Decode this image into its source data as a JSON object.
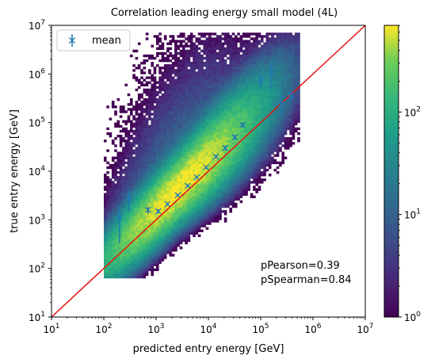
{
  "chart_data": {
    "type": "heatmap",
    "title": "Correlation leading energy small model (4L)",
    "xlabel": "predicted entry energy [GeV]",
    "ylabel": "true entry energy [GeV]",
    "x_scale": "log",
    "y_scale": "log",
    "xlim": [
      10,
      10000000
    ],
    "ylim": [
      10,
      10000000
    ],
    "x_ticks": [
      "10^1",
      "10^2",
      "10^3",
      "10^4",
      "10^5",
      "10^6",
      "10^7"
    ],
    "y_ticks": [
      "10^1",
      "10^2",
      "10^3",
      "10^4",
      "10^5",
      "10^6",
      "10^7"
    ],
    "grid": false,
    "colormap": "viridis",
    "colorbar": {
      "scale": "log",
      "range": [
        1,
        700
      ],
      "tick_labels": [
        "10^0",
        "10^1",
        "10^2"
      ]
    },
    "identity_line": {
      "color": "#e8120c",
      "from": [
        10,
        10
      ],
      "to": [
        10000000,
        10000000
      ]
    },
    "series": [
      {
        "name": "mean",
        "marker": "x",
        "color": "#1f77b4",
        "points": [
          {
            "x": 200,
            "y": 1100,
            "ylo": 330,
            "yhi": 1900
          },
          {
            "x": 300,
            "y": 2800,
            "ylo": 1500,
            "yhi": 4000
          },
          {
            "x": 700,
            "y": 1600,
            "ylo": 1300,
            "yhi": 1900
          },
          {
            "x": 1100,
            "y": 1500,
            "ylo": 1350,
            "yhi": 1650
          },
          {
            "x": 1650,
            "y": 2100,
            "ylo": 1950,
            "yhi": 2250
          },
          {
            "x": 2600,
            "y": 3200,
            "ylo": 3000,
            "yhi": 3400
          },
          {
            "x": 4000,
            "y": 5000,
            "ylo": 4700,
            "yhi": 5300
          },
          {
            "x": 6000,
            "y": 7500,
            "ylo": 7100,
            "yhi": 7900
          },
          {
            "x": 9000,
            "y": 12000,
            "ylo": 11300,
            "yhi": 12700
          },
          {
            "x": 14000,
            "y": 20000,
            "ylo": 18500,
            "yhi": 21500
          },
          {
            "x": 21000,
            "y": 30000,
            "ylo": 27000,
            "yhi": 33000
          },
          {
            "x": 32000,
            "y": 50000,
            "ylo": 44000,
            "yhi": 56000
          },
          {
            "x": 45000,
            "y": 90000,
            "ylo": 80000,
            "yhi": 100000
          },
          {
            "x": 100000,
            "y": 750000,
            "ylo": 500000,
            "yhi": 1100000
          },
          {
            "x": 160000,
            "y": 1050000,
            "ylo": 500000,
            "yhi": 1700000
          },
          {
            "x": 250000,
            "y": 240000,
            "ylo": 140000,
            "yhi": 380000
          },
          {
            "x": 380000,
            "y": 360000,
            "ylo": 270000,
            "yhi": 450000
          }
        ]
      }
    ],
    "annotations": [
      "pPearson=0.39",
      "pSpearman=0.84"
    ],
    "legend_position": "top-left",
    "colors": {
      "axis": "#000000",
      "line": "#e8120c",
      "marker": "#1f77b4"
    }
  }
}
